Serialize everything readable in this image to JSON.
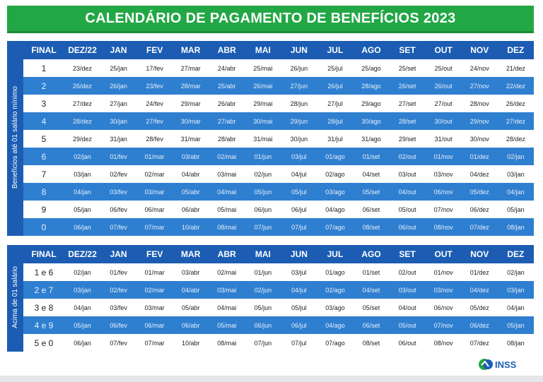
{
  "title": "CALENDÁRIO DE PAGAMENTO DE BENEFÍCIOS 2023",
  "tables": [
    {
      "side_label": "Benefícios até 01 salário mínimo",
      "header": [
        "FINAL",
        "DEZ/22",
        "JAN",
        "FEV",
        "MAR",
        "ABR",
        "MAI",
        "JUN",
        "JUL",
        "AGO",
        "SET",
        "OUT",
        "NOV",
        "DEZ"
      ],
      "rows": [
        [
          "1",
          "23/dez",
          "25/jan",
          "17/fev",
          "27/mar",
          "24/abr",
          "25/mai",
          "26/jun",
          "25/jul",
          "25/ago",
          "25/set",
          "25/out",
          "24/nov",
          "21/dez"
        ],
        [
          "2",
          "26/dez",
          "26/jan",
          "23/fev",
          "28/mar",
          "25/abr",
          "26/mai",
          "27/jun",
          "26/jul",
          "28/ago",
          "26/set",
          "26/out",
          "27/nov",
          "22/dez"
        ],
        [
          "3",
          "27/dez",
          "27/jan",
          "24/fev",
          "29/mar",
          "26/abr",
          "29/mai",
          "28/jun",
          "27/jul",
          "29/ago",
          "27/set",
          "27/out",
          "28/nov",
          "26/dez"
        ],
        [
          "4",
          "28/dez",
          "30/jan",
          "27/fev",
          "30/mar",
          "27/abr",
          "30/mai",
          "29/jun",
          "28/jul",
          "30/ago",
          "28/set",
          "30/out",
          "29/nov",
          "27/dez"
        ],
        [
          "5",
          "29/dez",
          "31/jan",
          "28/fev",
          "31/mar",
          "28/abr",
          "31/mai",
          "30/jun",
          "31/jul",
          "31/ago",
          "29/set",
          "31/out",
          "30/nov",
          "28/dez"
        ],
        [
          "6",
          "02/jan",
          "01/fev",
          "01/mar",
          "03/abr",
          "02/mai",
          "01/jun",
          "03/jul",
          "01/ago",
          "01/set",
          "02/out",
          "01/nov",
          "01/dez",
          "02/jan"
        ],
        [
          "7",
          "03/jan",
          "02/fev",
          "02/mar",
          "04/abr",
          "03/mai",
          "02/jun",
          "04/jul",
          "02/ago",
          "04/set",
          "03/out",
          "03/nov",
          "04/dez",
          "03/jan"
        ],
        [
          "8",
          "04/jan",
          "03/fev",
          "03/mar",
          "05/abr",
          "04/mai",
          "05/jun",
          "05/jul",
          "03/ago",
          "05/set",
          "04/out",
          "06/nov",
          "05/dez",
          "04/jan"
        ],
        [
          "9",
          "05/jan",
          "06/fev",
          "06/mar",
          "06/abr",
          "05/mai",
          "06/jun",
          "06/jul",
          "04/ago",
          "06/set",
          "05/out",
          "07/nov",
          "06/dez",
          "05/jan"
        ],
        [
          "0",
          "06/jan",
          "07/fev",
          "07/mar",
          "10/abr",
          "08/mai",
          "07/jun",
          "07/jul",
          "07/ago",
          "08/set",
          "06/out",
          "08/nov",
          "07/dez",
          "08/jan"
        ]
      ]
    },
    {
      "side_label": "Acima de 01 salário",
      "header": [
        "FINAL",
        "DEZ/22",
        "JAN",
        "FEV",
        "MAR",
        "ABR",
        "MAI",
        "JUN",
        "JUL",
        "AGO",
        "SET",
        "OUT",
        "NOV",
        "DEZ"
      ],
      "rows": [
        [
          "1 e 6",
          "02/jan",
          "01/fev",
          "01/mar",
          "03/abr",
          "02/mai",
          "01/jun",
          "03/jul",
          "01/ago",
          "01/set",
          "02/out",
          "01/nov",
          "01/dez",
          "02/jan"
        ],
        [
          "2 e 7",
          "03/jan",
          "02/fev",
          "02/mar",
          "04/abr",
          "03/mai",
          "02/jun",
          "04/jul",
          "02/ago",
          "04/set",
          "03/out",
          "03/nov",
          "04/dez",
          "03/jan"
        ],
        [
          "3 e 8",
          "04/jan",
          "03/fev",
          "03/mar",
          "05/abr",
          "04/mai",
          "05/jun",
          "05/jul",
          "03/ago",
          "05/set",
          "04/out",
          "06/nov",
          "05/dez",
          "04/jan"
        ],
        [
          "4 e 9",
          "05/jan",
          "06/fev",
          "06/mar",
          "06/abr",
          "05/mai",
          "06/jun",
          "06/jul",
          "04/ago",
          "06/set",
          "05/out",
          "07/nov",
          "06/dez",
          "05/jan"
        ],
        [
          "5 e 0",
          "06/jan",
          "07/fev",
          "07/mar",
          "10/abr",
          "08/mai",
          "07/jun",
          "07/jul",
          "07/ago",
          "08/set",
          "06/out",
          "08/nov",
          "07/dez",
          "08/jan"
        ]
      ]
    }
  ],
  "logo": "INSS"
}
